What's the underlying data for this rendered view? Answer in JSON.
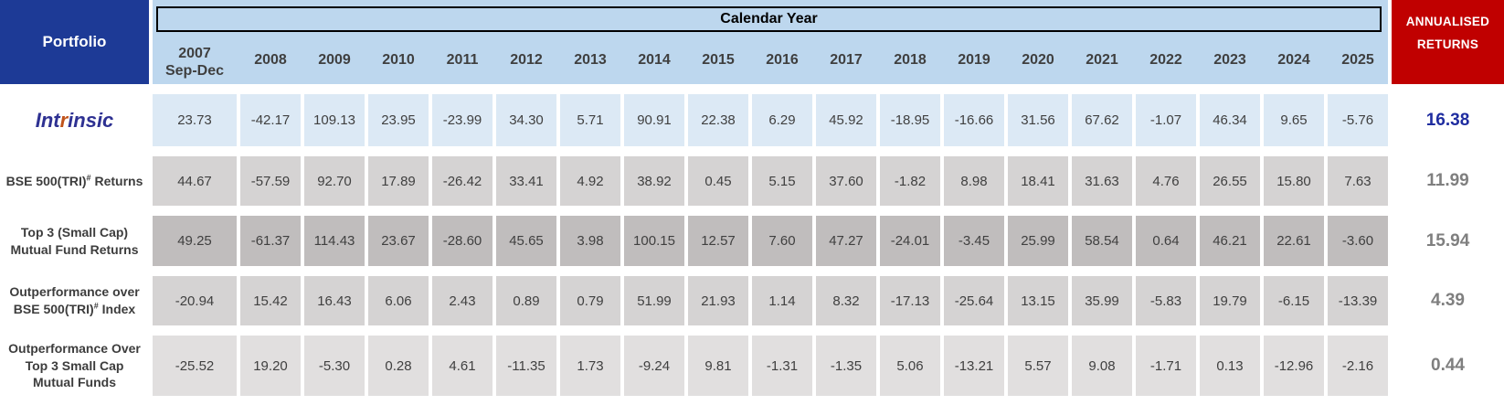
{
  "header": {
    "portfolio_label": "Portfolio",
    "calendar_year_label": "Calendar Year",
    "annualised_line1": "ANNUALISED",
    "annualised_line2": "RETURNS",
    "years": [
      {
        "label": "2007",
        "sub": "Sep-Dec"
      },
      {
        "label": "2008"
      },
      {
        "label": "2009"
      },
      {
        "label": "2010"
      },
      {
        "label": "2011"
      },
      {
        "label": "2012"
      },
      {
        "label": "2013"
      },
      {
        "label": "2014"
      },
      {
        "label": "2015"
      },
      {
        "label": "2016"
      },
      {
        "label": "2017"
      },
      {
        "label": "2018"
      },
      {
        "label": "2019"
      },
      {
        "label": "2020"
      },
      {
        "label": "2021"
      },
      {
        "label": "2022"
      },
      {
        "label": "2023"
      },
      {
        "label": "2024"
      },
      {
        "label": "2025"
      }
    ]
  },
  "colors": {
    "portfolio_bg": "#1d3a96",
    "header_band_bg": "#bdd7ee",
    "annualised_bg": "#c00000",
    "intrinsic_blue": "#2e3192",
    "intrinsic_accent": "#c0531b",
    "annualised_highlight": "#1f2da0",
    "annualised_grey": "#7f7f7f"
  },
  "rows": [
    {
      "id": "intrinsic",
      "label": {
        "type": "logo",
        "pre": "Int",
        "accent": "r",
        "post": "insic"
      },
      "bg": "#dce9f5",
      "values": [
        "23.73",
        "-42.17",
        "109.13",
        "23.95",
        "-23.99",
        "34.30",
        "5.71",
        "90.91",
        "22.38",
        "6.29",
        "45.92",
        "-18.95",
        "-16.66",
        "31.56",
        "67.62",
        "-1.07",
        "46.34",
        "9.65",
        "-5.76"
      ],
      "annualised": "16.38",
      "annualised_color": "#1f2da0"
    },
    {
      "id": "bse500-returns",
      "label": {
        "type": "lines",
        "lines": [
          [
            {
              "t": "BSE 500(TRI)"
            },
            {
              "sup": "#"
            },
            {
              "t": " Returns"
            }
          ]
        ]
      },
      "bg": "#d5d3d3",
      "values": [
        "44.67",
        "-57.59",
        "92.70",
        "17.89",
        "-26.42",
        "33.41",
        "4.92",
        "38.92",
        "0.45",
        "5.15",
        "37.60",
        "-1.82",
        "8.98",
        "18.41",
        "31.63",
        "4.76",
        "26.55",
        "15.80",
        "7.63"
      ],
      "annualised": "11.99",
      "annualised_color": "#7f7f7f"
    },
    {
      "id": "top3-smallcap-returns",
      "label": {
        "type": "lines",
        "lines": [
          [
            {
              "t": "Top 3 (Small Cap)"
            }
          ],
          [
            {
              "t": "Mutual Fund Returns"
            }
          ]
        ]
      },
      "bg": "#c0bdbd",
      "values": [
        "49.25",
        "-61.37",
        "114.43",
        "23.67",
        "-28.60",
        "45.65",
        "3.98",
        "100.15",
        "12.57",
        "7.60",
        "47.27",
        "-24.01",
        "-3.45",
        "25.99",
        "58.54",
        "0.64",
        "46.21",
        "22.61",
        "-3.60"
      ],
      "annualised": "15.94",
      "annualised_color": "#7f7f7f"
    },
    {
      "id": "outperformance-bse500",
      "label": {
        "type": "lines",
        "lines": [
          [
            {
              "t": "Outperformance over"
            }
          ],
          [
            {
              "t": "BSE 500(TRI)"
            },
            {
              "sup": "#"
            },
            {
              "t": " Index"
            }
          ]
        ]
      },
      "bg": "#d5d3d3",
      "values": [
        "-20.94",
        "15.42",
        "16.43",
        "6.06",
        "2.43",
        "0.89",
        "0.79",
        "51.99",
        "21.93",
        "1.14",
        "8.32",
        "-17.13",
        "-25.64",
        "13.15",
        "35.99",
        "-5.83",
        "19.79",
        "-6.15",
        "-13.39"
      ],
      "annualised": "4.39",
      "annualised_color": "#7f7f7f"
    },
    {
      "id": "outperformance-top3",
      "label": {
        "type": "lines",
        "lines": [
          [
            {
              "t": "Outperformance Over"
            }
          ],
          [
            {
              "t": "Top 3 Small Cap"
            }
          ],
          [
            {
              "t": "Mutual Funds"
            }
          ]
        ]
      },
      "bg": "#e1dfdf",
      "values": [
        "-25.52",
        "19.20",
        "-5.30",
        "0.28",
        "4.61",
        "-11.35",
        "1.73",
        "-9.24",
        "9.81",
        "-1.31",
        "-1.35",
        "5.06",
        "-13.21",
        "5.57",
        "9.08",
        "-1.71",
        "0.13",
        "-12.96",
        "-2.16"
      ],
      "annualised": "0.44",
      "annualised_color": "#7f7f7f"
    }
  ]
}
